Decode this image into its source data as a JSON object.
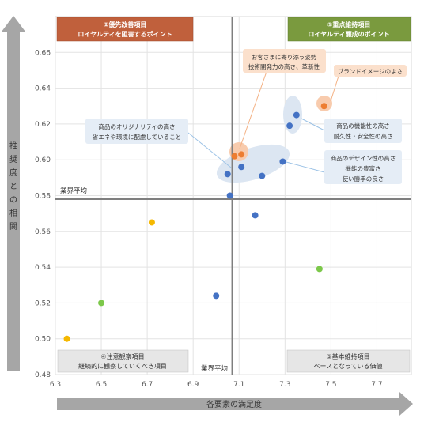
{
  "chart_data": {
    "type": "scatter",
    "title": "",
    "xlabel": "各要素の満足度",
    "ylabel": "推奨度との相関",
    "xlim": [
      6.3,
      7.85
    ],
    "ylim": [
      0.48,
      0.68
    ],
    "xticks": [
      6.3,
      6.5,
      6.7,
      6.9,
      7.1,
      7.3,
      7.5,
      7.7
    ],
    "yticks": [
      0.48,
      0.5,
      0.52,
      0.54,
      0.56,
      0.58,
      0.6,
      0.62,
      0.64,
      0.66
    ],
    "grid": true,
    "average": {
      "x": 7.07,
      "y": 0.578,
      "x_label": "業界平均",
      "y_label": "業界平均"
    },
    "points": [
      {
        "x": 6.35,
        "y": 0.5,
        "color": "#f5b800"
      },
      {
        "x": 6.72,
        "y": 0.565,
        "color": "#f5b800"
      },
      {
        "x": 6.5,
        "y": 0.52,
        "color": "#7cc84a"
      },
      {
        "x": 7.45,
        "y": 0.539,
        "color": "#7cc84a"
      },
      {
        "x": 7.0,
        "y": 0.524,
        "color": "#4472c4"
      },
      {
        "x": 7.17,
        "y": 0.569,
        "color": "#4472c4"
      },
      {
        "x": 7.06,
        "y": 0.58,
        "color": "#4472c4"
      },
      {
        "x": 7.05,
        "y": 0.592,
        "color": "#4472c4"
      },
      {
        "x": 7.11,
        "y": 0.596,
        "color": "#4472c4"
      },
      {
        "x": 7.2,
        "y": 0.591,
        "color": "#4472c4"
      },
      {
        "x": 7.29,
        "y": 0.599,
        "color": "#4472c4"
      },
      {
        "x": 7.32,
        "y": 0.619,
        "color": "#4472c4"
      },
      {
        "x": 7.35,
        "y": 0.625,
        "color": "#4472c4"
      },
      {
        "x": 7.08,
        "y": 0.602,
        "color": "#ed7d31"
      },
      {
        "x": 7.11,
        "y": 0.603,
        "color": "#ed7d31"
      },
      {
        "x": 7.47,
        "y": 0.63,
        "color": "#ed7d31"
      }
    ],
    "quadrants": {
      "q2": {
        "line1": "②優先改善項目",
        "line2": "ロイヤルティを阻害するポイント"
      },
      "q1": {
        "line1": "①重点維持項目",
        "line2": "ロイヤルティ醸成のポイント"
      },
      "q4": {
        "line1": "④注意観察項目",
        "line2": "継続的に観察していくべき項目"
      },
      "q3": {
        "line1": "③基本維持項目",
        "line2": "ベースとなっている価値"
      }
    },
    "annotations": {
      "orange_main": [
        "お客さまに寄り添う姿勢",
        "技術開発力の高さ、革新性"
      ],
      "orange_brand": [
        "ブランドイメージのよさ"
      ],
      "blue_left": [
        "商品のオリジナリティの高さ",
        "省エネや環境に配慮していること"
      ],
      "blue_right_top": [
        "商品の機能性の高さ",
        "耐久性・安全性の高さ"
      ],
      "blue_right_bottom": [
        "商品のデザイン性の高さ",
        "機能の豊富さ",
        "使い勝手の良さ"
      ]
    },
    "colors": {
      "q2_bg": "#c0603c",
      "q1_bg": "#7a9a3e",
      "q_bottom_bg": "#e6e6e6",
      "arrow": "#a6a6a6",
      "avg_line": "#7f7f7f"
    }
  }
}
